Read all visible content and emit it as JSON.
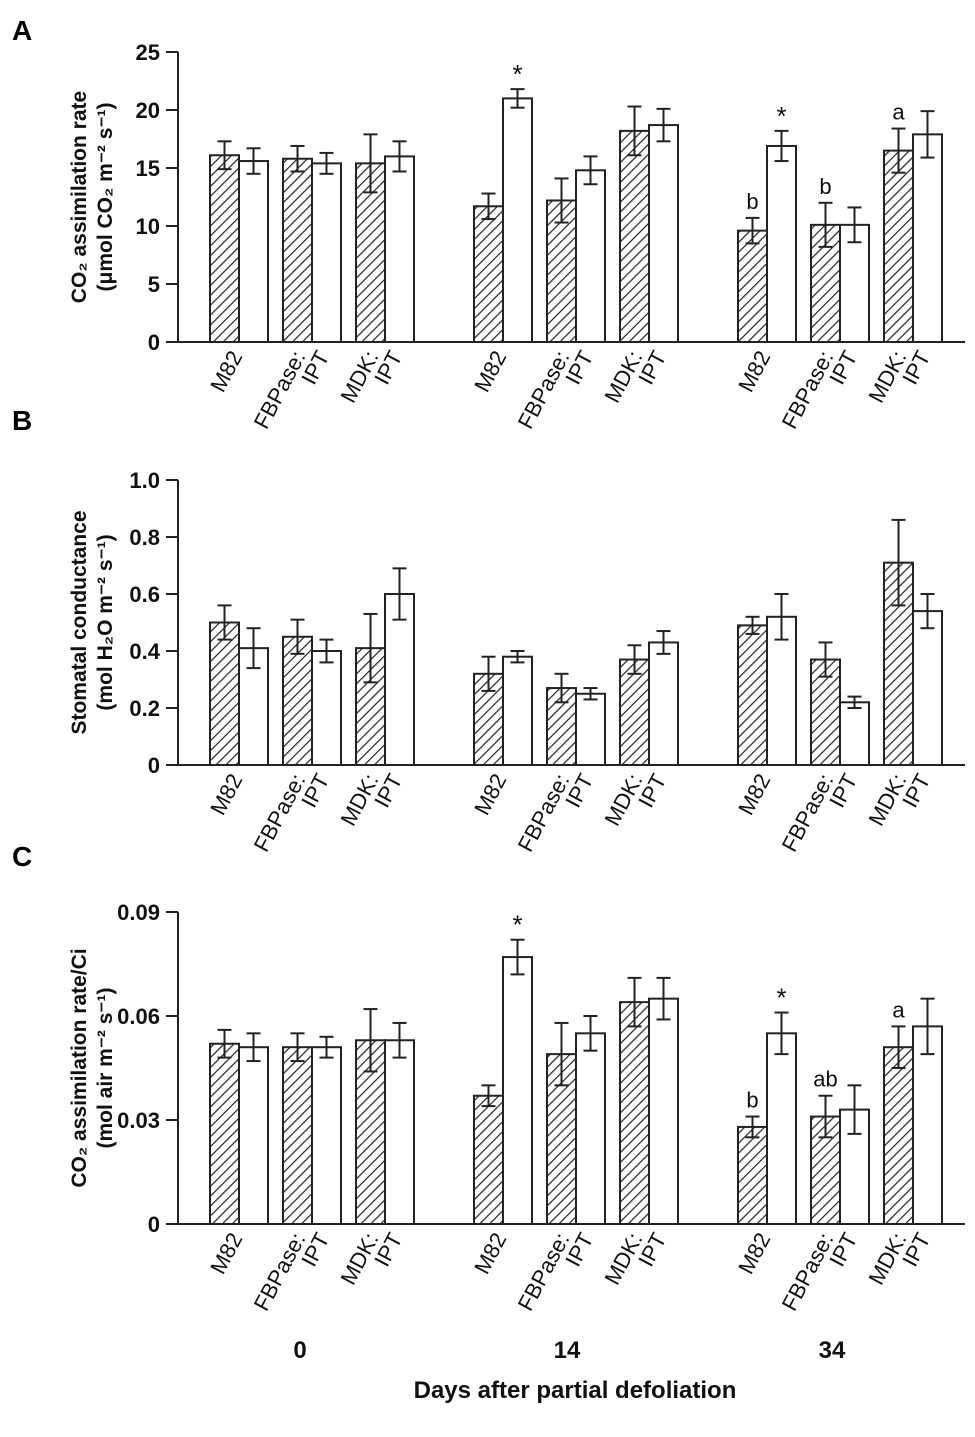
{
  "chart_data": [
    {
      "type": "bar",
      "panel": "A",
      "ylabel_line1": "CO₂ assimilation rate",
      "ylabel_line2": "(μmol CO₂ m⁻² s⁻¹)",
      "ylim": [
        0,
        25
      ],
      "yticks": [
        0,
        5,
        10,
        15,
        20,
        25
      ],
      "ytick_labels": [
        "0",
        "5",
        "10",
        "15",
        "20",
        "25"
      ],
      "groups": [
        {
          "day": "0",
          "genotypes": [
            {
              "line1": "M82",
              "line2": "",
              "hatched": 16.1,
              "hatched_err": 1.2,
              "open": 15.6,
              "open_err": 1.1,
              "hatched_annot": "",
              "open_annot": ""
            },
            {
              "line1": "FBPase:",
              "line2": "IPT",
              "hatched": 15.8,
              "hatched_err": 1.1,
              "open": 15.4,
              "open_err": 0.9,
              "hatched_annot": "",
              "open_annot": ""
            },
            {
              "line1": "MDK:",
              "line2": "IPT",
              "hatched": 15.4,
              "hatched_err": 2.5,
              "open": 16.0,
              "open_err": 1.3,
              "hatched_annot": "",
              "open_annot": ""
            }
          ]
        },
        {
          "day": "14",
          "genotypes": [
            {
              "line1": "M82",
              "line2": "",
              "hatched": 11.7,
              "hatched_err": 1.1,
              "open": 21.0,
              "open_err": 0.8,
              "hatched_annot": "",
              "open_annot": "*"
            },
            {
              "line1": "FBPase:",
              "line2": "IPT",
              "hatched": 12.2,
              "hatched_err": 1.9,
              "open": 14.8,
              "open_err": 1.2,
              "hatched_annot": "",
              "open_annot": ""
            },
            {
              "line1": "MDK:",
              "line2": "IPT",
              "hatched": 18.2,
              "hatched_err": 2.1,
              "open": 18.7,
              "open_err": 1.4,
              "hatched_annot": "",
              "open_annot": ""
            }
          ]
        },
        {
          "day": "34",
          "genotypes": [
            {
              "line1": "M82",
              "line2": "",
              "hatched": 9.6,
              "hatched_err": 1.1,
              "open": 16.9,
              "open_err": 1.3,
              "hatched_annot": "b",
              "open_annot": "*"
            },
            {
              "line1": "FBPase:",
              "line2": "IPT",
              "hatched": 10.1,
              "hatched_err": 1.9,
              "open": 10.1,
              "open_err": 1.5,
              "hatched_annot": "b",
              "open_annot": ""
            },
            {
              "line1": "MDK:",
              "line2": "IPT",
              "hatched": 16.5,
              "hatched_err": 1.9,
              "open": 17.9,
              "open_err": 2.0,
              "hatched_annot": "a",
              "open_annot": ""
            }
          ]
        }
      ]
    },
    {
      "type": "bar",
      "panel": "B",
      "ylabel_line1": "Stomatal conductance",
      "ylabel_line2": "(mol H₂O m⁻² s⁻¹)",
      "ylim": [
        0,
        1.0
      ],
      "yticks": [
        0,
        0.2,
        0.4,
        0.6,
        0.8,
        1.0
      ],
      "ytick_labels": [
        "0",
        "0.2",
        "0.4",
        "0.6",
        "0.8",
        "1.0"
      ],
      "groups": [
        {
          "day": "0",
          "genotypes": [
            {
              "line1": "M82",
              "line2": "",
              "hatched": 0.5,
              "hatched_err": 0.06,
              "open": 0.41,
              "open_err": 0.07,
              "hatched_annot": "",
              "open_annot": ""
            },
            {
              "line1": "FBPase:",
              "line2": "IPT",
              "hatched": 0.45,
              "hatched_err": 0.06,
              "open": 0.4,
              "open_err": 0.04,
              "hatched_annot": "",
              "open_annot": ""
            },
            {
              "line1": "MDK:",
              "line2": "IPT",
              "hatched": 0.41,
              "hatched_err": 0.12,
              "open": 0.6,
              "open_err": 0.09,
              "hatched_annot": "",
              "open_annot": ""
            }
          ]
        },
        {
          "day": "14",
          "genotypes": [
            {
              "line1": "M82",
              "line2": "",
              "hatched": 0.32,
              "hatched_err": 0.06,
              "open": 0.38,
              "open_err": 0.02,
              "hatched_annot": "",
              "open_annot": ""
            },
            {
              "line1": "FBPase:",
              "line2": "IPT",
              "hatched": 0.27,
              "hatched_err": 0.05,
              "open": 0.25,
              "open_err": 0.02,
              "hatched_annot": "",
              "open_annot": ""
            },
            {
              "line1": "MDK:",
              "line2": "IPT",
              "hatched": 0.37,
              "hatched_err": 0.05,
              "open": 0.43,
              "open_err": 0.04,
              "hatched_annot": "",
              "open_annot": ""
            }
          ]
        },
        {
          "day": "34",
          "genotypes": [
            {
              "line1": "M82",
              "line2": "",
              "hatched": 0.49,
              "hatched_err": 0.03,
              "open": 0.52,
              "open_err": 0.08,
              "hatched_annot": "",
              "open_annot": ""
            },
            {
              "line1": "FBPase:",
              "line2": "IPT",
              "hatched": 0.37,
              "hatched_err": 0.06,
              "open": 0.22,
              "open_err": 0.02,
              "hatched_annot": "",
              "open_annot": ""
            },
            {
              "line1": "MDK:",
              "line2": "IPT",
              "hatched": 0.71,
              "hatched_err": 0.15,
              "open": 0.54,
              "open_err": 0.06,
              "hatched_annot": "",
              "open_annot": ""
            }
          ]
        }
      ]
    },
    {
      "type": "bar",
      "panel": "C",
      "ylabel_line1": "CO₂ assimilation rate/Ci",
      "ylabel_line2": "(mol air m⁻² s⁻¹)",
      "ylim": [
        0,
        0.09
      ],
      "yticks": [
        0,
        0.03,
        0.06,
        0.09
      ],
      "ytick_labels": [
        "0",
        "0.03",
        "0.06",
        "0.09"
      ],
      "groups": [
        {
          "day": "0",
          "genotypes": [
            {
              "line1": "M82",
              "line2": "",
              "hatched": 0.052,
              "hatched_err": 0.004,
              "open": 0.051,
              "open_err": 0.004,
              "hatched_annot": "",
              "open_annot": ""
            },
            {
              "line1": "FBPase:",
              "line2": "IPT",
              "hatched": 0.051,
              "hatched_err": 0.004,
              "open": 0.051,
              "open_err": 0.003,
              "hatched_annot": "",
              "open_annot": ""
            },
            {
              "line1": "MDK:",
              "line2": "IPT",
              "hatched": 0.053,
              "hatched_err": 0.009,
              "open": 0.053,
              "open_err": 0.005,
              "hatched_annot": "",
              "open_annot": ""
            }
          ]
        },
        {
          "day": "14",
          "genotypes": [
            {
              "line1": "M82",
              "line2": "",
              "hatched": 0.037,
              "hatched_err": 0.003,
              "open": 0.077,
              "open_err": 0.005,
              "hatched_annot": "",
              "open_annot": "*"
            },
            {
              "line1": "FBPase:",
              "line2": "IPT",
              "hatched": 0.049,
              "hatched_err": 0.009,
              "open": 0.055,
              "open_err": 0.005,
              "hatched_annot": "",
              "open_annot": ""
            },
            {
              "line1": "MDK:",
              "line2": "IPT",
              "hatched": 0.064,
              "hatched_err": 0.007,
              "open": 0.065,
              "open_err": 0.006,
              "hatched_annot": "",
              "open_annot": ""
            }
          ]
        },
        {
          "day": "34",
          "genotypes": [
            {
              "line1": "M82",
              "line2": "",
              "hatched": 0.028,
              "hatched_err": 0.003,
              "open": 0.055,
              "open_err": 0.006,
              "hatched_annot": "b",
              "open_annot": "*"
            },
            {
              "line1": "FBPase:",
              "line2": "IPT",
              "hatched": 0.031,
              "hatched_err": 0.006,
              "open": 0.033,
              "open_err": 0.007,
              "hatched_annot": "ab",
              "open_annot": ""
            },
            {
              "line1": "MDK:",
              "line2": "IPT",
              "hatched": 0.051,
              "hatched_err": 0.006,
              "open": 0.057,
              "open_err": 0.008,
              "hatched_annot": "a",
              "open_annot": ""
            }
          ]
        }
      ]
    }
  ],
  "xlabel": "Days after partial defoliation",
  "day_labels": [
    "0",
    "14",
    "34"
  ]
}
